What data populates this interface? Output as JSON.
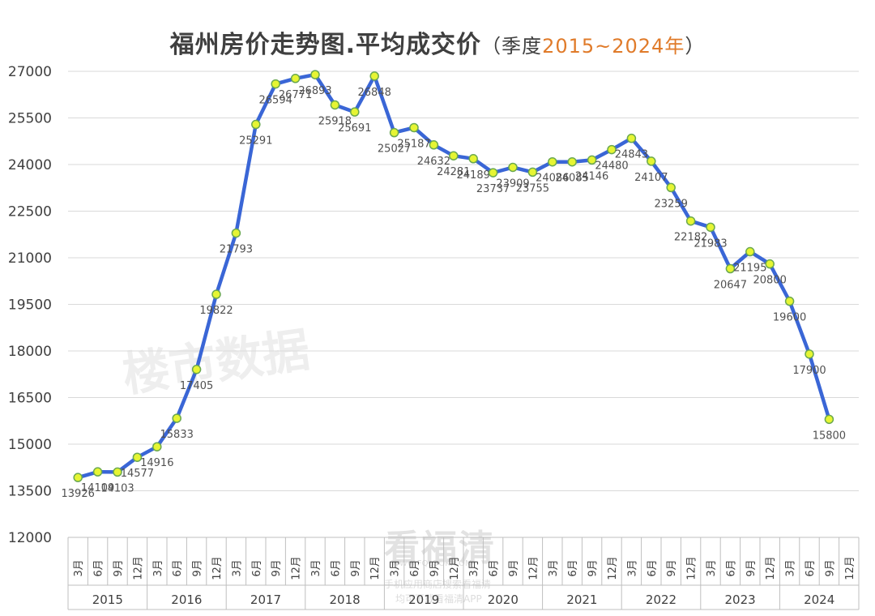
{
  "chart_data": {
    "type": "line",
    "title": "福州房价走势图.平均成交价",
    "subtitle_prefix": "（季度",
    "subtitle_range": "2015~2024年",
    "subtitle_suffix": "）",
    "ylim": [
      12000,
      27000
    ],
    "yticks": [
      12000,
      13500,
      15000,
      16500,
      18000,
      19500,
      21000,
      22500,
      24000,
      25500,
      27000
    ],
    "grid": true,
    "years": [
      "2015",
      "2016",
      "2017",
      "2018",
      "2019",
      "2020",
      "2021",
      "2022",
      "2023",
      "2024"
    ],
    "months": [
      "3月",
      "6月",
      "9月",
      "12月"
    ],
    "series": [
      {
        "color": "#3a66d6",
        "marker_fill": "#e6f533",
        "marker_stroke": "#6aa84f",
        "values": [
          13926,
          14109,
          14103,
          14577,
          14916,
          15833,
          17405,
          19822,
          21793,
          25291,
          26594,
          26771,
          26893,
          25918,
          25691,
          26848,
          25027,
          25187,
          24632,
          24281,
          24189,
          23737,
          23909,
          23755,
          24086,
          24085,
          24146,
          24480,
          24843,
          24107,
          23259,
          22182,
          21983,
          20647,
          21195,
          20800,
          19600,
          17900,
          15800
        ]
      }
    ]
  },
  "watermarks": {
    "main": "楼市数据",
    "logo": "看福清",
    "logo_sub1": "WWW.FQLOOK.COM",
    "logo_sub2": "手机应用商店搜索看福清",
    "logo_sub3": "均可下载看福清APP"
  },
  "colors": {
    "line": "#3a66d6",
    "grid": "#d9d9d9",
    "axis": "#bfbfbf",
    "title": "#3f3f3f",
    "accent": "#e07b2a"
  }
}
